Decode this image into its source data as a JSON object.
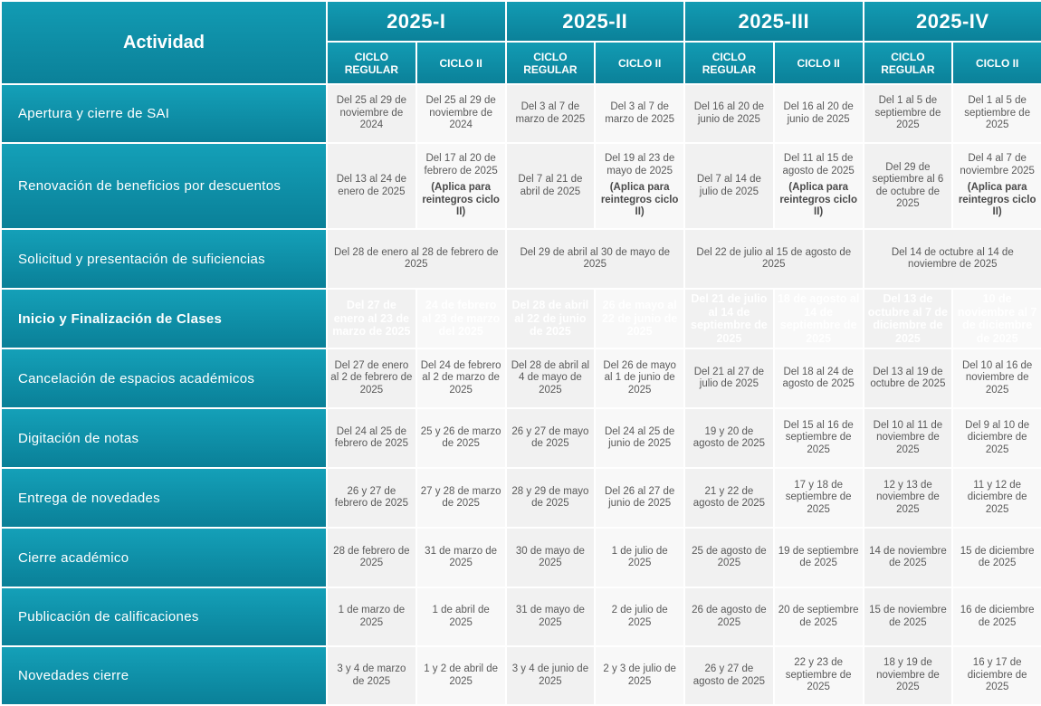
{
  "header": {
    "activity_label": "Actividad",
    "periods": [
      {
        "name": "2025-I",
        "cycles": [
          "CICLO REGULAR",
          "CICLO II"
        ]
      },
      {
        "name": "2025-II",
        "cycles": [
          "CICLO REGULAR",
          "CICLO II"
        ]
      },
      {
        "name": "2025-III",
        "cycles": [
          "CICLO REGULAR",
          "CICLO II"
        ]
      },
      {
        "name": "2025-IV",
        "cycles": [
          "CICLO REGULAR",
          "CICLO II"
        ]
      }
    ]
  },
  "rows": [
    {
      "activity": "Apertura y cierre de SAI",
      "cells": [
        "Del 25 al 29 de noviembre de 2024",
        "Del 25 al 29 de noviembre de 2024",
        "Del 3 al 7 de marzo de 2025",
        "Del 3 al 7 de marzo de 2025",
        "Del 16 al 20 de junio de 2025",
        "Del 16 al 20 de junio de 2025",
        "Del 1 al 5 de septiembre de 2025",
        "Del 1 al 5 de septiembre de 2025"
      ]
    },
    {
      "activity": "Renovación de beneficios por descuentos",
      "cells": [
        "Del 13 al 24 de enero de 2025",
        {
          "text": "Del 17 al 20 de febrero de 2025",
          "note": "(Aplica para reintegros ciclo II)"
        },
        "Del 7 al 21 de abril de 2025",
        {
          "text": "Del 19 al 23 de mayo de 2025",
          "note": "(Aplica para reintegros ciclo II)"
        },
        "Del 7 al 14 de julio de 2025",
        {
          "text": "Del 11 al 15 de agosto de 2025",
          "note": "(Aplica para reintegros ciclo II)"
        },
        "Del 29 de septiembre al 6 de octubre de 2025",
        {
          "text": "Del 4 al 7 de noviembre 2025",
          "note": "(Aplica para reintegros ciclo II)"
        }
      ]
    },
    {
      "activity": "Solicitud y presentación de suficiencias",
      "cells": [
        "Del 28 de enero al 28 de febrero de 2025",
        "Del 29 de abril al 30 de mayo de 2025",
        "Del 22 de julio al 15 de agosto de 2025",
        "Del 14 de octubre al 14 de noviembre de 2025"
      ]
    },
    {
      "activity": "Inicio y Finalización de Clases",
      "highlight": true,
      "cells": [
        "Del 27 de enero al 23 de marzo de 2025",
        "24 de febrero al 23 de marzo del 2025",
        "Del 28 de abril al 22 de junio de 2025",
        "26 de mayo al 22 de junio de 2025",
        "Del 21 de julio al 14 de septiembre de 2025",
        "18 de agosto al 14 de septiembre de 2025",
        "Del 13 de octubre al 7 de diciembre de 2025",
        "10 de noviembre al 7 de diciembre de 2025"
      ]
    },
    {
      "activity": "Cancelación de espacios académicos",
      "cells": [
        "Del 27 de enero al 2 de febrero de 2025",
        "Del 24 de febrero al 2 de marzo de 2025",
        "Del 28 de abril al 4 de mayo de 2025",
        "Del 26 de mayo al 1 de junio de 2025",
        "Del 21 al 27 de julio de 2025",
        "Del 18 al 24 de agosto de 2025",
        "Del 13 al 19 de octubre de 2025",
        "Del 10 al 16 de noviembre de 2025"
      ]
    },
    {
      "activity": "Digitación de notas",
      "cells": [
        "Del 24 al 25 de febrero de 2025",
        "25 y 26 de marzo de 2025",
        "26 y 27 de mayo de 2025",
        "Del 24 al 25 de junio de 2025",
        "19 y 20 de agosto de 2025",
        "Del 15 al 16 de septiembre de 2025",
        "Del 10 al 11 de noviembre de 2025",
        "Del 9 al 10 de diciembre de 2025"
      ]
    },
    {
      "activity": "Entrega de novedades",
      "cells": [
        "26 y 27 de febrero de 2025",
        "27 y 28 de marzo de 2025",
        "28 y 29 de mayo de 2025",
        "Del 26 al 27 de junio de 2025",
        "21 y 22 de agosto de 2025",
        "17 y 18 de septiembre de 2025",
        "12 y 13 de noviembre de 2025",
        "11 y 12 de diciembre de 2025"
      ]
    },
    {
      "activity": "Cierre académico",
      "cells": [
        "28 de febrero de 2025",
        "31 de marzo de 2025",
        "30 de mayo de 2025",
        "1 de julio de 2025",
        "25 de agosto de 2025",
        "19 de septiembre de 2025",
        "14 de noviembre de 2025",
        "15 de diciembre de 2025"
      ]
    },
    {
      "activity": "Publicación de calificaciones",
      "cells": [
        "1 de marzo de 2025",
        "1 de abril de 2025",
        "31 de mayo de 2025",
        "2 de julio de 2025",
        "26 de agosto de 2025",
        "20 de septiembre de 2025",
        "15 de noviembre de 2025",
        "16 de diciembre de 2025"
      ]
    },
    {
      "activity": "Novedades cierre",
      "cells": [
        "3 y 4 de marzo de 2025",
        "1 y 2 de abril de 2025",
        "3 y 4 de junio de 2025",
        "2 y 3 de julio de 2025",
        "26 y 27 de agosto de 2025",
        "22 y 23 de septiembre de 2025",
        "18 y 19 de noviembre de 2025",
        "16 y 17 de diciembre de 2025"
      ]
    }
  ]
}
